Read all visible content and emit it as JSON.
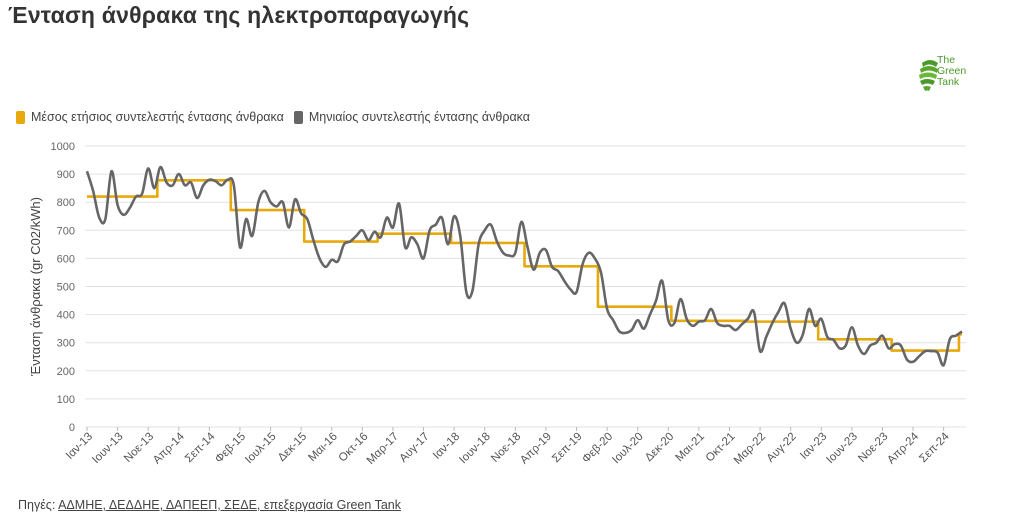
{
  "title": "Ένταση άνθρακα της ηλεκτροπαραγωγής",
  "logo": {
    "line1": "The",
    "line2": "Green",
    "line3": "Tank",
    "icon": "green-tank-globe-icon"
  },
  "legend": {
    "annual": "Μέσος ετήσιος συντελεστής έντασης άνθρακα",
    "monthly": "Μηνιαίος συντελεστής έντασης άνθρακα"
  },
  "footer": {
    "prefix": "Πηγές: ",
    "link": "ΑΔΜΗΕ, ΔΕΔΔΗΕ, ΔΑΠΕΕΠ, ΣΕΔΕ, επεξεργασία Green Tank"
  },
  "colors": {
    "annual": "#E8A90C",
    "monthly": "#666666",
    "grid": "#e2e2e2",
    "logo": "#4a9a2a"
  },
  "chart_data": {
    "type": "line",
    "ylabel": "Ένταση άνθρακα (gr C02/kWh)",
    "ylim": [
      0,
      1000
    ],
    "yticks": [
      0,
      100,
      200,
      300,
      400,
      500,
      600,
      700,
      800,
      900,
      1000
    ],
    "grid": "horizontal",
    "legend_position": "top-left",
    "x_start": "2013-01",
    "x_end": "2024-12",
    "xtick_labels": [
      "Ιαν-13",
      "Ιουν-13",
      "Νοε-13",
      "Απρ-14",
      "Σεπ-14",
      "Φεβ-15",
      "Ιουλ-15",
      "Δεκ-15",
      "Μαι-16",
      "Οκτ-16",
      "Μαρ-17",
      "Αυγ-17",
      "Ιαν-18",
      "Ιουν-18",
      "Νοε-18",
      "Απρ-19",
      "Σεπ-19",
      "Φεβ-20",
      "Ιουλ-20",
      "Δεκ-20",
      "Μαι-21",
      "Οκτ-21",
      "Μαρ-22",
      "Αυγ-22",
      "Ιαν-23",
      "Ιουν-23",
      "Νοε-23",
      "Απρ-24",
      "Σεπ-24"
    ],
    "series": [
      {
        "name": "Μέσος ετήσιος συντελεστής έντασης άνθρακα",
        "values": [
          820,
          820,
          820,
          820,
          820,
          820,
          820,
          820,
          820,
          820,
          820,
          820,
          878,
          878,
          878,
          878,
          878,
          878,
          878,
          878,
          878,
          878,
          878,
          878,
          772,
          772,
          772,
          772,
          772,
          772,
          772,
          772,
          772,
          772,
          772,
          772,
          660,
          660,
          660,
          660,
          660,
          660,
          660,
          660,
          660,
          660,
          660,
          660,
          688,
          688,
          688,
          688,
          688,
          688,
          688,
          688,
          688,
          688,
          688,
          688,
          655,
          655,
          655,
          655,
          655,
          655,
          655,
          655,
          655,
          655,
          655,
          655,
          572,
          572,
          572,
          572,
          572,
          572,
          572,
          572,
          572,
          572,
          572,
          572,
          428,
          428,
          428,
          428,
          428,
          428,
          428,
          428,
          428,
          428,
          428,
          428,
          378,
          378,
          378,
          378,
          378,
          378,
          378,
          378,
          378,
          378,
          378,
          378,
          375,
          375,
          375,
          375,
          375,
          375,
          375,
          375,
          375,
          375,
          375,
          375,
          312,
          312,
          312,
          312,
          312,
          312,
          312,
          312,
          312,
          312,
          312,
          312,
          272,
          272,
          272,
          272,
          272,
          272,
          272,
          272,
          272,
          272,
          272,
          330
        ]
      },
      {
        "name": "Μηνιαίος συντελεστής έντασης άνθρακα",
        "values": [
          910,
          840,
          745,
          740,
          910,
          790,
          755,
          780,
          820,
          830,
          920,
          850,
          925,
          870,
          860,
          900,
          860,
          870,
          815,
          860,
          880,
          875,
          860,
          880,
          860,
          640,
          740,
          680,
          800,
          840,
          800,
          785,
          800,
          710,
          810,
          760,
          740,
          665,
          600,
          570,
          595,
          590,
          650,
          660,
          680,
          700,
          665,
          695,
          675,
          745,
          710,
          795,
          640,
          675,
          650,
          600,
          700,
          720,
          745,
          650,
          750,
          680,
          480,
          485,
          650,
          700,
          720,
          660,
          620,
          610,
          620,
          730,
          640,
          560,
          620,
          630,
          570,
          555,
          520,
          490,
          480,
          580,
          620,
          600,
          550,
          420,
          380,
          340,
          335,
          345,
          380,
          350,
          400,
          450,
          520,
          380,
          370,
          455,
          385,
          360,
          375,
          380,
          420,
          370,
          360,
          360,
          345,
          365,
          385,
          410,
          270,
          320,
          370,
          410,
          440,
          350,
          300,
          330,
          420,
          360,
          385,
          320,
          310,
          280,
          290,
          355,
          290,
          260,
          290,
          300,
          325,
          280,
          295,
          290,
          240,
          232,
          252,
          270,
          270,
          265,
          220,
          312,
          325,
          340
        ]
      }
    ]
  }
}
